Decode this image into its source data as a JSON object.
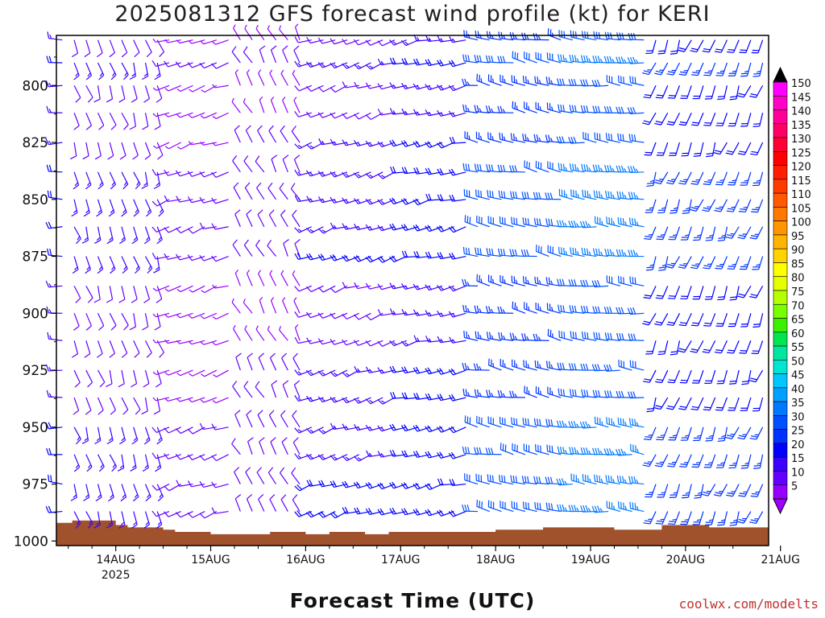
{
  "header": {
    "title": "2025081312 GFS forecast wind profile (kt) for KERI"
  },
  "footer": {
    "x_axis_title": "Forecast Time (UTC)",
    "credit": "coolwx.com/modelts"
  },
  "chart_data": {
    "type": "wind-barb profile (time-height)",
    "title": "2025081312 GFS forecast wind profile (kt) for KERI",
    "xlabel": "Forecast Time (UTC)",
    "ylabel": "",
    "x_ticks": [
      "14AUG",
      "15AUG",
      "16AUG",
      "17AUG",
      "18AUG",
      "19AUG",
      "20AUG",
      "21AUG"
    ],
    "x_tick_sublabel": "2025",
    "xlim_hours_from_init": [
      -3,
      177
    ],
    "y_ticks": [
      800,
      825,
      850,
      875,
      900,
      925,
      950,
      975,
      1000
    ],
    "ylim_hPa": [
      1002,
      778
    ],
    "units": "kt",
    "colorbar": {
      "ticks": [
        150,
        145,
        140,
        135,
        130,
        125,
        120,
        115,
        110,
        105,
        100,
        95,
        90,
        85,
        80,
        75,
        70,
        65,
        60,
        55,
        50,
        45,
        40,
        35,
        30,
        25,
        20,
        15,
        10,
        5
      ],
      "colors": [
        "#ff00ff",
        "#ff00c8",
        "#ff0096",
        "#ff0064",
        "#ff0032",
        "#ff0000",
        "#ff1e00",
        "#ff3c00",
        "#ff5a00",
        "#ff7800",
        "#ff9600",
        "#ffb400",
        "#ffd200",
        "#ffff00",
        "#e6ff00",
        "#b4ff00",
        "#78ff00",
        "#3cf000",
        "#00e650",
        "#00e6a0",
        "#00e6d2",
        "#00c8ff",
        "#00a0ff",
        "#0078ff",
        "#0050ff",
        "#0032ff",
        "#0000ff",
        "#3c00ff",
        "#6400ff",
        "#9600ff"
      ],
      "top_arrow_color": "#000000",
      "bottom_arrow_color": "#a000ff"
    },
    "terrain_color": "#a0522d",
    "terrain_pressure_hPa": [
      [
        -3,
        992
      ],
      [
        1,
        991
      ],
      [
        9,
        991
      ],
      [
        12,
        993
      ],
      [
        15,
        994
      ],
      [
        24,
        995
      ],
      [
        27,
        996
      ],
      [
        36,
        997
      ],
      [
        45,
        997
      ],
      [
        51,
        996
      ],
      [
        60,
        997
      ],
      [
        66,
        996
      ],
      [
        75,
        997
      ],
      [
        81,
        996
      ],
      [
        96,
        996
      ],
      [
        108,
        995
      ],
      [
        120,
        994
      ],
      [
        138,
        995
      ],
      [
        150,
        993
      ],
      [
        162,
        994
      ],
      [
        177,
        994
      ]
    ],
    "wind_barb_columns_every_hours": 3,
    "wind_barb_levels_hPa": [
      780,
      790,
      800,
      812,
      825,
      838,
      850,
      862,
      875,
      888,
      900,
      912,
      925,
      937,
      950,
      962,
      975,
      987
    ],
    "wind_regimes": [
      {
        "hours": [
          -3,
          0
        ],
        "direction_deg": 270,
        "speed_kt": 20
      },
      {
        "hours": [
          0,
          24
        ],
        "direction_deg": 160,
        "speed_kt": 15
      },
      {
        "hours": [
          24,
          42
        ],
        "direction_deg": 250,
        "speed_kt": 10
      },
      {
        "hours": [
          42,
          60
        ],
        "direction_deg": 330,
        "speed_kt": 12
      },
      {
        "hours": [
          60,
          84
        ],
        "direction_deg": 250,
        "speed_kt": 18
      },
      {
        "hours": [
          84,
          102
        ],
        "direction_deg": 255,
        "speed_kt": 22
      },
      {
        "hours": [
          102,
          126
        ],
        "direction_deg": 280,
        "speed_kt": 30
      },
      {
        "hours": [
          126,
          147
        ],
        "direction_deg": 275,
        "speed_kt": 35
      },
      {
        "hours": [
          147,
          177
        ],
        "direction_deg": 200,
        "speed_kt": 25
      }
    ]
  }
}
